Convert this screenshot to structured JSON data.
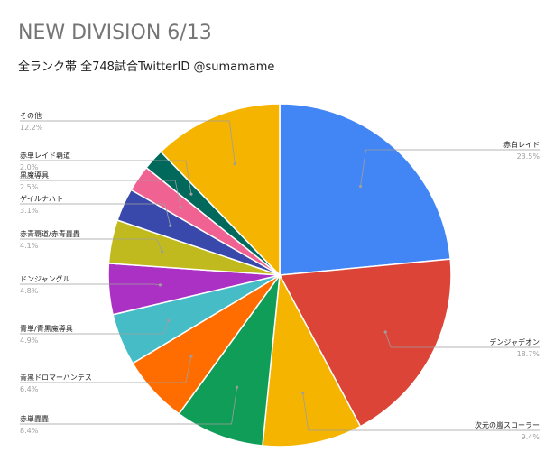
{
  "chart_data": {
    "type": "pie",
    "title": "NEW DIVISION 6/13",
    "subtitle": "全ランク帯 全748試合TwitterID @sumamame",
    "slices": [
      {
        "label": "赤白レイド",
        "percent_text": "23.5%",
        "value": 23.5,
        "color": "#4285F4"
      },
      {
        "label": "デンジャデオン",
        "percent_text": "18.7%",
        "value": 18.7,
        "color": "#DB4437"
      },
      {
        "label": "次元の嵐スコーラー",
        "percent_text": "9.4%",
        "value": 9.4,
        "color": "#F4B400"
      },
      {
        "label": "赤単轟轟",
        "percent_text": "8.4%",
        "value": 8.4,
        "color": "#0F9D58"
      },
      {
        "label": "青黒ドロマーハンデス",
        "percent_text": "6.4%",
        "value": 6.4,
        "color": "#FF6D01"
      },
      {
        "label": "青単/青黒魔導具",
        "percent_text": "4.9%",
        "value": 4.9,
        "color": "#46BDC6"
      },
      {
        "label": "ドンジャングル",
        "percent_text": "4.8%",
        "value": 4.8,
        "color": "#AB30C4"
      },
      {
        "label": "赤青覇道/赤青轟轟",
        "percent_text": "4.1%",
        "value": 4.1,
        "color": "#C0BA1E"
      },
      {
        "label": "ゲイルナハト",
        "percent_text": "3.1%",
        "value": 3.1,
        "color": "#3949AB"
      },
      {
        "label": "黒魔導具",
        "percent_text": "2.5%",
        "value": 2.5,
        "color": "#F06292"
      },
      {
        "label": "赤単レイド覇道",
        "percent_text": "2.0%",
        "value": 2.0,
        "color": "#00695C"
      },
      {
        "label": "その他",
        "percent_text": "12.2%",
        "value": 12.2,
        "color": "#F4B400"
      }
    ],
    "legend": "none"
  }
}
